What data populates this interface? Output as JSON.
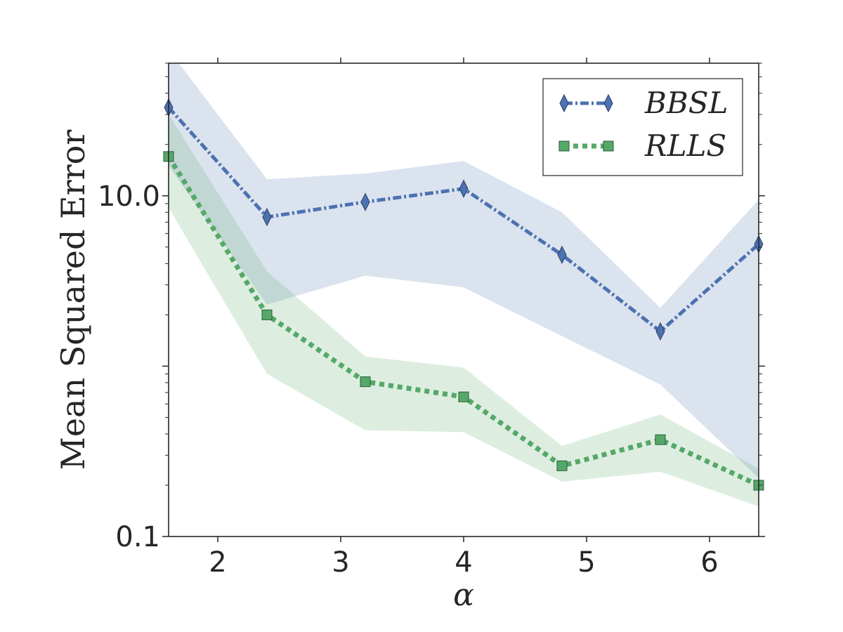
{
  "chart_data": {
    "type": "line",
    "xlabel": "α",
    "ylabel": "Mean Squared Error",
    "xlim": [
      1.6,
      6.4
    ],
    "ylim": [
      0.1,
      60
    ],
    "yscale": "log",
    "xticks": [
      2,
      3,
      4,
      5,
      6
    ],
    "xtick_labels": [
      "2",
      "3",
      "4",
      "5",
      "6"
    ],
    "yticks": [
      0.1,
      10
    ],
    "ytick_labels": [
      "0.1",
      "10.0"
    ],
    "grid": false,
    "legend_position": "top-right",
    "x": [
      1.6,
      2.4,
      3.2,
      4.0,
      4.8,
      5.6,
      6.4
    ],
    "series": [
      {
        "name": "BBSL",
        "color": "#4c72b0",
        "marker": "diamond",
        "linestyle": "dashdot",
        "values": [
          33,
          7.5,
          9.2,
          11,
          4.5,
          1.6,
          5.2
        ],
        "lower": [
          15,
          2.3,
          3.4,
          2.9,
          1.5,
          0.78,
          0.22
        ],
        "upper": [
          72,
          12.5,
          13.5,
          16,
          8,
          2.2,
          9.5
        ]
      },
      {
        "name": "RLLS",
        "color": "#55a868",
        "marker": "square",
        "linestyle": "dotted",
        "values": [
          17,
          2.0,
          0.81,
          0.66,
          0.26,
          0.37,
          0.2
        ],
        "lower": [
          8.5,
          0.9,
          0.42,
          0.41,
          0.21,
          0.24,
          0.15
        ],
        "upper": [
          30,
          3.6,
          1.14,
          0.98,
          0.34,
          0.52,
          0.25
        ]
      }
    ]
  }
}
